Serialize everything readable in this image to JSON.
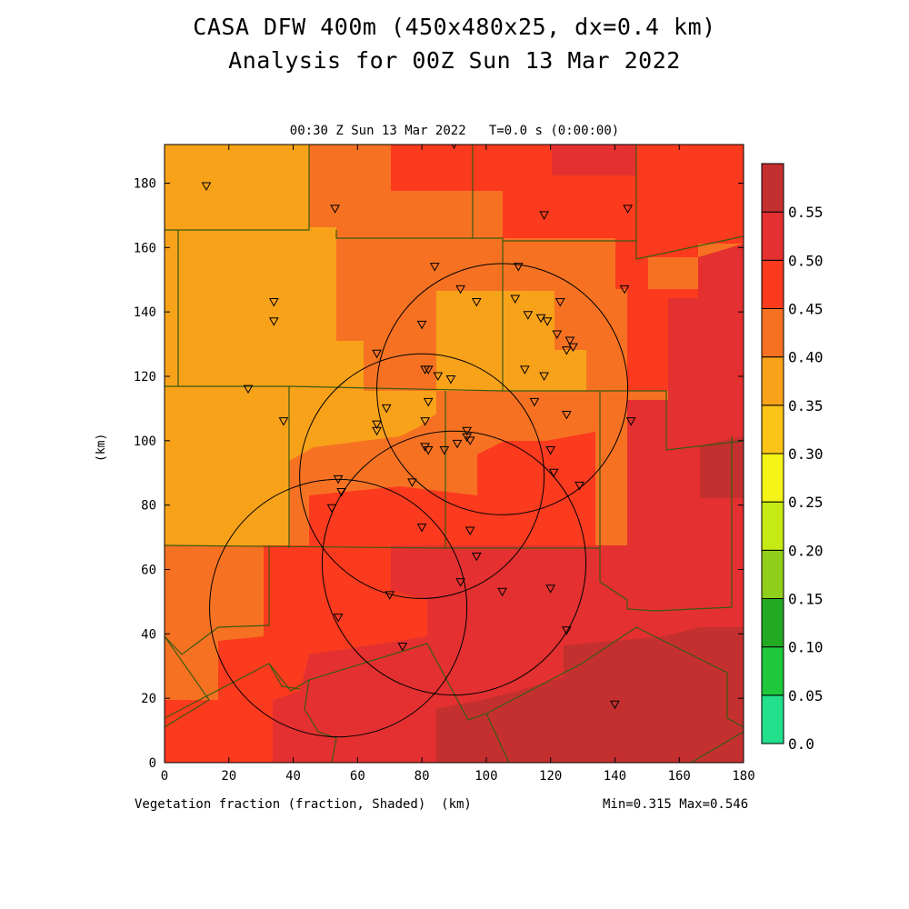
{
  "header": {
    "title_line1": "CASA DFW 400m (450x480x25, dx=0.4 km)",
    "title_line2": "Analysis for 00Z Sun 13 Mar 2022"
  },
  "chart_data": {
    "type": "heatmap",
    "plot_title": "00:30 Z Sun 13 Mar 2022   T=0.0 s (0:00:00)",
    "xlabel": "Vegetation fraction (fraction, Shaded)  (km)",
    "ylabel": "(km)",
    "xlim": [
      0,
      180
    ],
    "ylim": [
      0,
      192
    ],
    "x_ticks": [
      0,
      20,
      40,
      60,
      80,
      100,
      120,
      140,
      160,
      180
    ],
    "y_ticks": [
      0,
      20,
      40,
      60,
      80,
      100,
      120,
      140,
      160,
      180
    ],
    "stats_text": "Min=0.315 Max=0.546",
    "colorbar": {
      "levels": [
        "0.0",
        "0.05",
        "0.10",
        "0.15",
        "0.20",
        "0.25",
        "0.30",
        "0.35",
        "0.40",
        "0.45",
        "0.50",
        "0.55"
      ],
      "colors": [
        "#22e08c",
        "#1ec83a",
        "#22aa22",
        "#8fce1a",
        "#c6ea14",
        "#f4f418",
        "#fcc418",
        "#f8a21a",
        "#f67222",
        "#fb3a1e",
        "#e43030",
        "#c43030"
      ]
    },
    "field_colors": {
      "band_0.30_0.35": "#f8a21a",
      "band_0.35_0.40": "#f67222",
      "band_0.40_0.45": "#fb3a1e",
      "band_0.45_0.50": "#e43030",
      "band_0.50_0.55": "#c43030"
    },
    "radar_rings": [
      {
        "x": 105,
        "y": 116,
        "r": 39
      },
      {
        "x": 80,
        "y": 89,
        "r": 38
      },
      {
        "x": 90,
        "y": 62,
        "r": 41
      },
      {
        "x": 54,
        "y": 48,
        "r": 40
      }
    ],
    "stations": [
      [
        13,
        179
      ],
      [
        90,
        192
      ],
      [
        53,
        172
      ],
      [
        118,
        170
      ],
      [
        144,
        172
      ],
      [
        84,
        154
      ],
      [
        110,
        154
      ],
      [
        34,
        143
      ],
      [
        92,
        147
      ],
      [
        97,
        143
      ],
      [
        109,
        144
      ],
      [
        123,
        143
      ],
      [
        143,
        147
      ],
      [
        34,
        137
      ],
      [
        80,
        136
      ],
      [
        113,
        139
      ],
      [
        117,
        138
      ],
      [
        119,
        137
      ],
      [
        122,
        133
      ],
      [
        126,
        131
      ],
      [
        127,
        129
      ],
      [
        125,
        128
      ],
      [
        66,
        127
      ],
      [
        81,
        122
      ],
      [
        82,
        122
      ],
      [
        85,
        120
      ],
      [
        89,
        119
      ],
      [
        112,
        122
      ],
      [
        118,
        120
      ],
      [
        26,
        116
      ],
      [
        37,
        106
      ],
      [
        69,
        110
      ],
      [
        82,
        112
      ],
      [
        81,
        106
      ],
      [
        66,
        105
      ],
      [
        66,
        103
      ],
      [
        94,
        103
      ],
      [
        94,
        101
      ],
      [
        95,
        100
      ],
      [
        91,
        99
      ],
      [
        87,
        97
      ],
      [
        81,
        98
      ],
      [
        82,
        97
      ],
      [
        115,
        112
      ],
      [
        125,
        108
      ],
      [
        145,
        106
      ],
      [
        120,
        97
      ],
      [
        121,
        90
      ],
      [
        54,
        88
      ],
      [
        55,
        84
      ],
      [
        52,
        79
      ],
      [
        77,
        87
      ],
      [
        129,
        86
      ],
      [
        80,
        73
      ],
      [
        95,
        72
      ],
      [
        97,
        64
      ],
      [
        92,
        56
      ],
      [
        105,
        53
      ],
      [
        120,
        54
      ],
      [
        70,
        52
      ],
      [
        54,
        45
      ],
      [
        125,
        41
      ],
      [
        74,
        36
      ],
      [
        140,
        18
      ]
    ]
  }
}
